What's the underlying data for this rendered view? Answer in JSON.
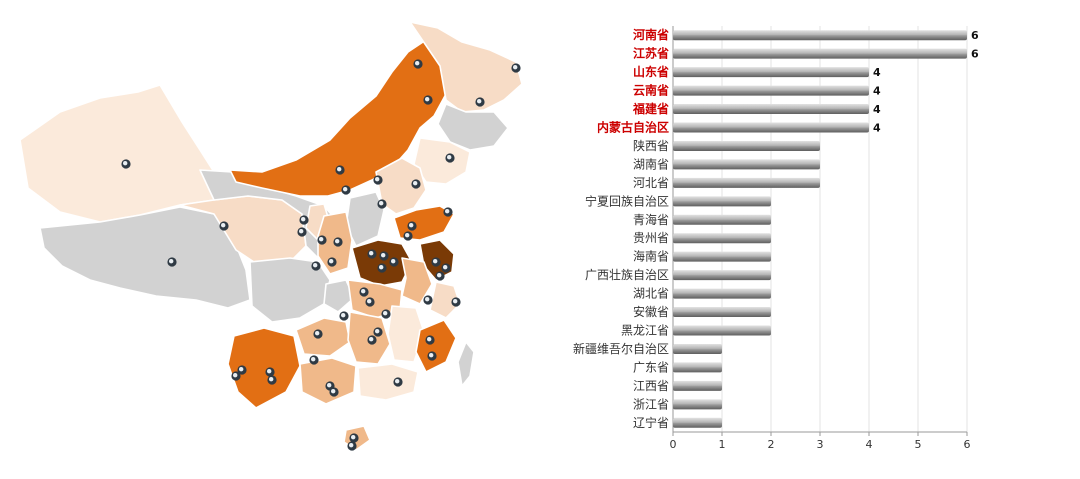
{
  "colors": {
    "highlight_label": "#cc0000",
    "normal_label": "#333333",
    "bar_fill": "#9a9a9a",
    "map_dark": "#7a3a06",
    "map_orange": "#e26f14",
    "map_mid": "#f0b98a",
    "map_light": "#f7dcc6",
    "map_pale": "#fbeadb",
    "map_none": "#d2d2d2"
  },
  "map": {
    "icons": [
      "location-pin-icon"
    ]
  },
  "chart_data": {
    "type": "bar",
    "orientation": "horizontal",
    "categories": [
      "河南省",
      "江苏省",
      "山东省",
      "云南省",
      "福建省",
      "内蒙古自治区",
      "陕西省",
      "湖南省",
      "河北省",
      "宁夏回族自治区",
      "青海省",
      "贵州省",
      "海南省",
      "广西壮族自治区",
      "湖北省",
      "安徽省",
      "黑龙江省",
      "新疆维吾尔自治区",
      "广东省",
      "江西省",
      "浙江省",
      "辽宁省"
    ],
    "values": [
      6,
      6,
      4,
      4,
      4,
      4,
      3,
      3,
      3,
      2,
      2,
      2,
      2,
      2,
      2,
      2,
      2,
      1,
      1,
      1,
      1,
      1
    ],
    "value_labels": [
      "6",
      "6",
      "4",
      "4",
      "4",
      "4",
      "",
      "",
      "",
      "",
      "",
      "",
      "",
      "",
      "",
      "",
      "",
      "",
      "",
      "",
      "",
      ""
    ],
    "highlighted": [
      true,
      true,
      true,
      true,
      true,
      true,
      false,
      false,
      false,
      false,
      false,
      false,
      false,
      false,
      false,
      false,
      false,
      false,
      false,
      false,
      false,
      false
    ],
    "xlim": [
      0,
      6
    ],
    "xticks": [
      "0",
      "1",
      "2",
      "3",
      "4",
      "5",
      "6"
    ],
    "grid": true,
    "xlabel": "",
    "ylabel": "",
    "title": ""
  }
}
